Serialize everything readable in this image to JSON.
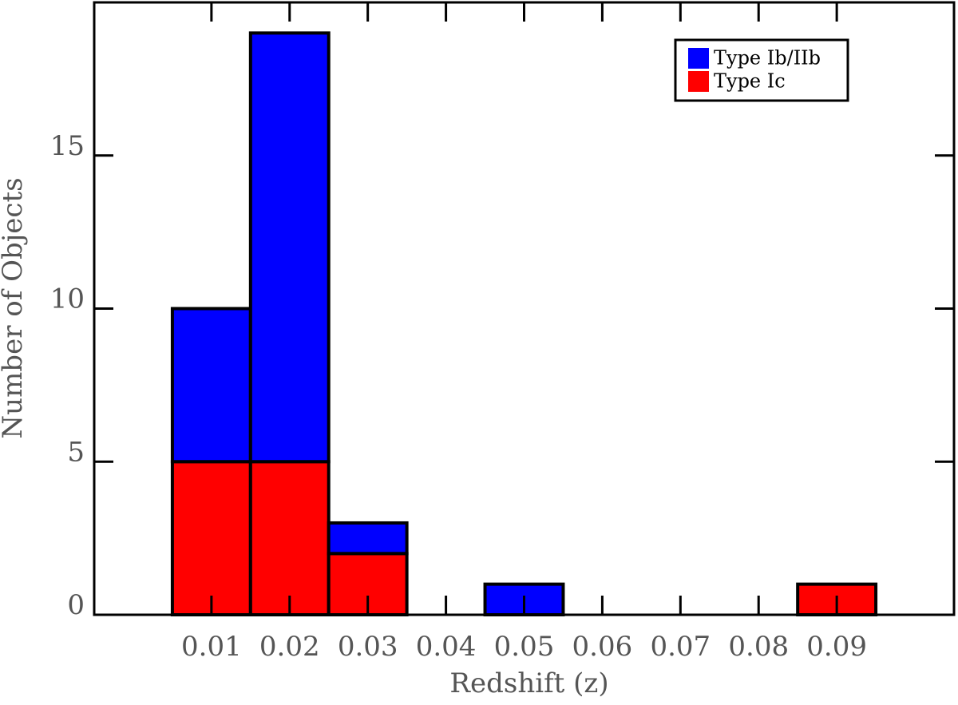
{
  "chart_data": {
    "type": "histogram",
    "x_label": "Redshift (z)",
    "y_label": "Number of Objects",
    "bins": [
      0.005,
      0.015,
      0.025,
      0.035,
      0.045,
      0.055,
      0.065,
      0.075,
      0.085,
      0.095
    ],
    "series": [
      {
        "name": "Type Ib/IIb",
        "color": "#0000ff",
        "values": [
          5,
          14,
          1,
          0,
          1,
          0,
          0,
          0,
          0
        ]
      },
      {
        "name": "Type Ic",
        "color": "#ff0000",
        "values": [
          5,
          5,
          2,
          0,
          0,
          0,
          0,
          0,
          1
        ]
      }
    ],
    "stacked": true,
    "xlim": [
      -0.005,
      0.105
    ],
    "xticks": [
      0.01,
      0.02,
      0.03,
      0.04,
      0.05,
      0.06,
      0.07,
      0.08,
      0.09
    ],
    "ylim": [
      0,
      20
    ],
    "yticks": [
      0,
      5,
      10,
      15
    ],
    "legend": "upper right"
  }
}
